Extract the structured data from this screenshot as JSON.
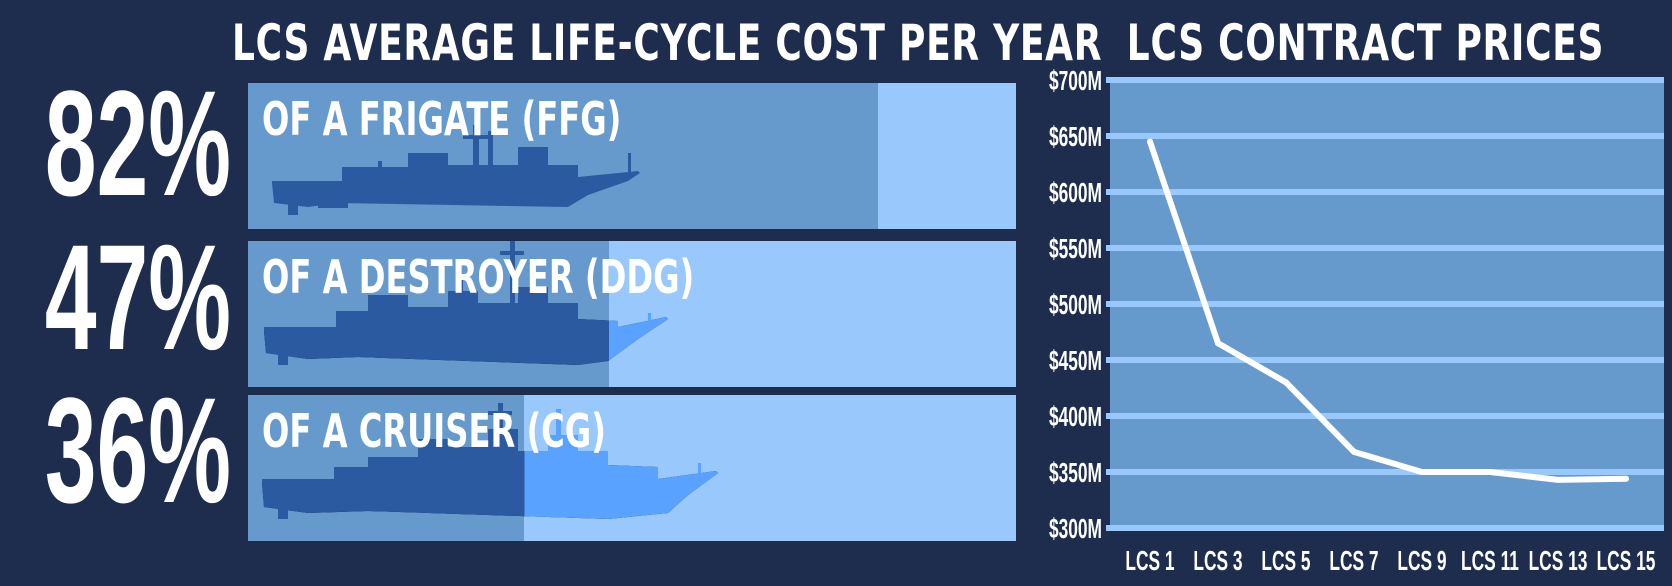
{
  "left_panel": {
    "title": "LCS AVERAGE LIFE-CYCLE COST PER YEAR",
    "rows": [
      {
        "percent_label": "82%",
        "label": "OF A FRIGATE (FFG)",
        "value": 82
      },
      {
        "percent_label": "47%",
        "label": "OF A DESTROYER (DDG)",
        "value": 47
      },
      {
        "percent_label": "36%",
        "label": "OF A CRUISER (CG)",
        "value": 36
      }
    ]
  },
  "colors": {
    "background": "#1e2d4d",
    "bar_light": "#99c9fc",
    "bar_fill": "#6699cc",
    "ship_dark": "#2c5aa0",
    "ship_light": "#5aa2ff",
    "plot_background": "#6699cc",
    "grid": "#99c9fc",
    "line": "#ffffff"
  },
  "chart_data": {
    "type": "line",
    "title": "LCS CONTRACT PRICES",
    "xlabel": "",
    "ylabel": "",
    "categories": [
      "LCS 1",
      "LCS 3",
      "LCS 5",
      "LCS 7",
      "LCS 9",
      "LCS 11",
      "LCS 13",
      "LCS 15"
    ],
    "x": [
      1,
      3,
      5,
      7,
      9,
      11,
      13,
      15
    ],
    "series": [
      {
        "values": [
          645,
          465,
          430,
          368,
          350,
          350,
          343,
          344
        ]
      }
    ],
    "ylim": [
      300,
      700
    ],
    "yticks": [
      300,
      350,
      400,
      450,
      500,
      550,
      600,
      650,
      700
    ],
    "ytick_labels": [
      "$300M",
      "$350M",
      "$400M",
      "$450M",
      "$500M",
      "$550M",
      "$600M",
      "$650M",
      "$700M"
    ],
    "grid": true
  }
}
